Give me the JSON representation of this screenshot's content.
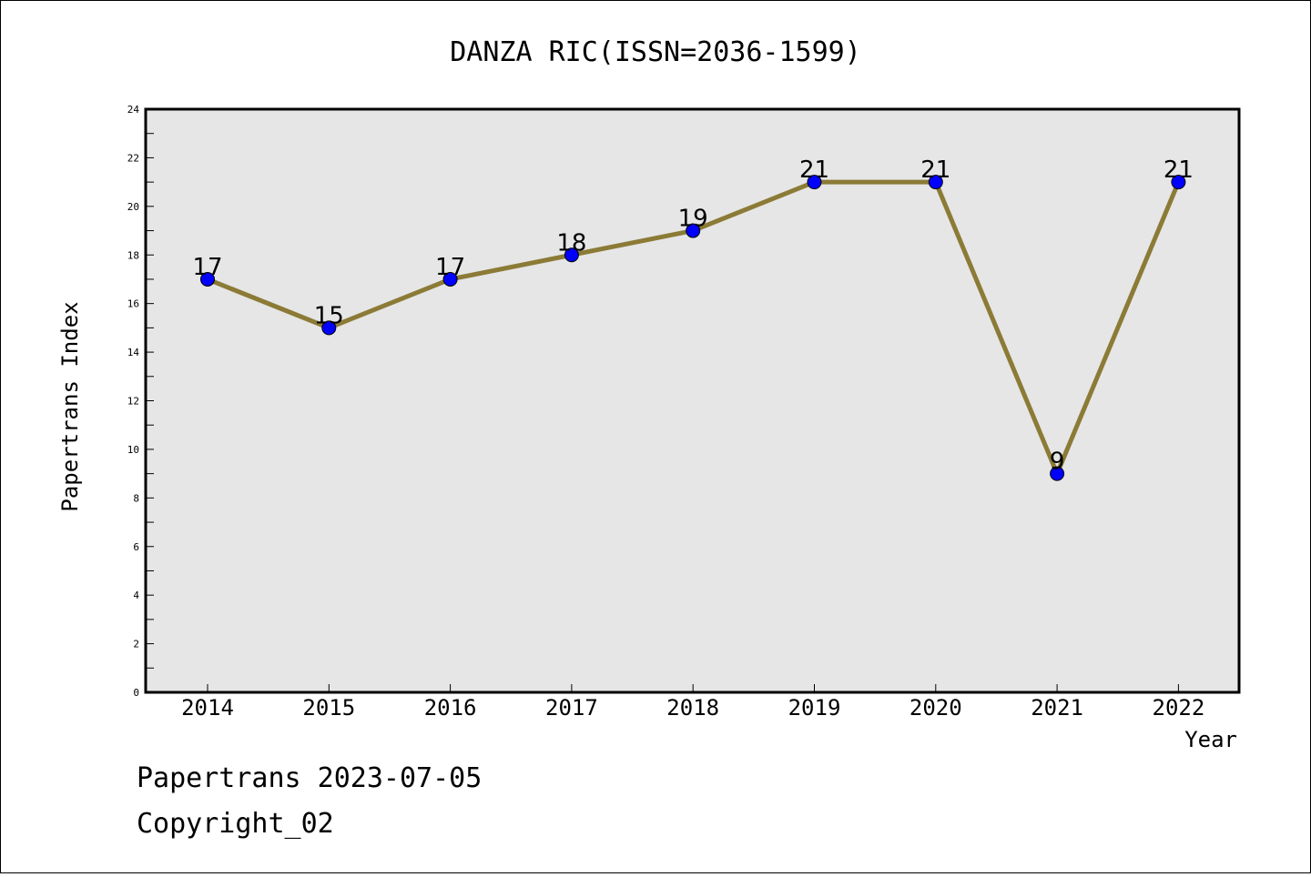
{
  "chart_data": {
    "type": "line",
    "title": "DANZA RIC(ISSN=2036-1599)",
    "xlabel": "Year",
    "ylabel": "Papertrans Index",
    "categories": [
      "2014",
      "2015",
      "2016",
      "2017",
      "2018",
      "2019",
      "2020",
      "2021",
      "2022"
    ],
    "series": [
      {
        "values": [
          17,
          15,
          17,
          18,
          19,
          21,
          21,
          9,
          21
        ]
      }
    ],
    "data_labels": [
      "17",
      "15",
      "17",
      "18",
      "19",
      "21",
      "21",
      "9",
      "21"
    ],
    "y_ticks": [
      "0",
      "2",
      "4",
      "6",
      "8",
      "10",
      "12",
      "14",
      "16",
      "18",
      "20",
      "22",
      "24"
    ],
    "ylim": [
      0,
      24
    ],
    "grid": false,
    "legend": "none",
    "colors": {
      "line": "#8b7b36",
      "marker": "#0000ff",
      "plot_background": "#e6e6e6"
    }
  },
  "footer": {
    "line1": "Papertrans 2023-07-05",
    "line2": "Copyright_02"
  }
}
